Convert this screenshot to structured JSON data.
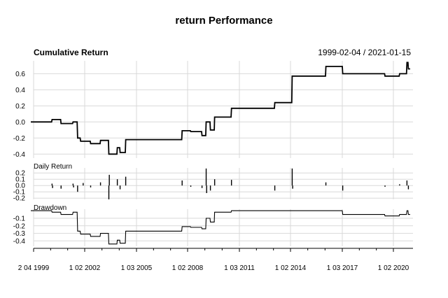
{
  "chart_data": {
    "type": "line",
    "title": "return Performance",
    "date_range": "1999-02-04 / 2021-01-15",
    "grid": true,
    "x_ticks": [
      "2 04 1999",
      "1 02 2002",
      "1 03 2005",
      "1 02 2008",
      "1 03 2011",
      "1 02 2014",
      "1 03 2017",
      "1 02 2020"
    ],
    "panels": [
      {
        "name": "Cumulative Return",
        "type": "line",
        "ylim": [
          -0.45,
          0.76
        ],
        "yticks": [
          "0.6",
          "0.4",
          "0.2",
          "0.0",
          "-0.2",
          "-0.4"
        ],
        "ytick_values": [
          0.6,
          0.4,
          0.2,
          0.0,
          -0.2,
          -0.4
        ],
        "points": [
          [
            "1999-02-04",
            0.0
          ],
          [
            "2000-04-01",
            0.0
          ],
          [
            "2000-04-10",
            0.03
          ],
          [
            "2000-10-01",
            0.03
          ],
          [
            "2000-10-10",
            -0.02
          ],
          [
            "2001-06-01",
            -0.02
          ],
          [
            "2001-06-10",
            0.0
          ],
          [
            "2001-09-01",
            0.0
          ],
          [
            "2001-09-10",
            -0.2
          ],
          [
            "2001-11-01",
            -0.2
          ],
          [
            "2001-11-10",
            -0.24
          ],
          [
            "2002-06-01",
            -0.24
          ],
          [
            "2002-06-10",
            -0.27
          ],
          [
            "2003-01-01",
            -0.27
          ],
          [
            "2003-01-10",
            -0.23
          ],
          [
            "2003-07-01",
            -0.23
          ],
          [
            "2003-07-10",
            -0.4
          ],
          [
            "2004-01-01",
            -0.4
          ],
          [
            "2004-01-10",
            -0.32
          ],
          [
            "2004-03-01",
            -0.32
          ],
          [
            "2004-03-10",
            -0.38
          ],
          [
            "2004-07-01",
            -0.38
          ],
          [
            "2004-07-10",
            -0.22
          ],
          [
            "2007-10-01",
            -0.22
          ],
          [
            "2007-10-10",
            -0.11
          ],
          [
            "2008-04-01",
            -0.11
          ],
          [
            "2008-04-10",
            -0.12
          ],
          [
            "2008-12-01",
            -0.12
          ],
          [
            "2008-12-10",
            -0.17
          ],
          [
            "2009-03-01",
            -0.17
          ],
          [
            "2009-03-10",
            0.0
          ],
          [
            "2009-06-01",
            0.0
          ],
          [
            "2009-06-10",
            -0.1
          ],
          [
            "2009-09-01",
            -0.1
          ],
          [
            "2009-09-10",
            0.06
          ],
          [
            "2010-09-01",
            0.06
          ],
          [
            "2010-09-10",
            0.17
          ],
          [
            "2013-03-01",
            0.17
          ],
          [
            "2013-03-10",
            0.24
          ],
          [
            "2014-03-01",
            0.24
          ],
          [
            "2014-03-10",
            0.57
          ],
          [
            "2016-03-01",
            0.57
          ],
          [
            "2016-03-10",
            0.69
          ],
          [
            "2017-03-01",
            0.69
          ],
          [
            "2017-03-10",
            0.6
          ],
          [
            "2019-08-01",
            0.6
          ],
          [
            "2019-08-10",
            0.57
          ],
          [
            "2020-06-01",
            0.57
          ],
          [
            "2020-06-10",
            0.6
          ],
          [
            "2020-11-01",
            0.6
          ],
          [
            "2020-11-10",
            0.74
          ],
          [
            "2020-12-01",
            0.74
          ],
          [
            "2020-12-10",
            0.66
          ],
          [
            "2021-01-15",
            0.66
          ]
        ]
      },
      {
        "name": "Daily Return",
        "type": "bar",
        "ylim": [
          -0.22,
          0.28
        ],
        "yticks": [
          "0.2",
          "0.1",
          "0.0",
          "-0.1",
          "-0.2"
        ],
        "ytick_values": [
          0.2,
          0.1,
          0.0,
          -0.1,
          -0.2
        ],
        "points": [
          [
            "2000-04-10",
            0.03
          ],
          [
            "2000-04-20",
            -0.04
          ],
          [
            "2000-10-10",
            -0.05
          ],
          [
            "2001-06-10",
            0.03
          ],
          [
            "2001-06-20",
            -0.03
          ],
          [
            "2001-09-10",
            -0.1
          ],
          [
            "2002-01-01",
            0.04
          ],
          [
            "2002-06-10",
            -0.03
          ],
          [
            "2003-01-10",
            0.05
          ],
          [
            "2003-07-10",
            -0.22
          ],
          [
            "2003-07-20",
            0.17
          ],
          [
            "2004-01-10",
            0.1
          ],
          [
            "2004-03-10",
            -0.06
          ],
          [
            "2004-07-10",
            0.14
          ],
          [
            "2007-10-10",
            0.08
          ],
          [
            "2008-04-10",
            -0.02
          ],
          [
            "2008-12-10",
            -0.04
          ],
          [
            "2009-03-10",
            0.27
          ],
          [
            "2009-03-20",
            -0.12
          ],
          [
            "2009-06-10",
            -0.08
          ],
          [
            "2009-09-10",
            0.1
          ],
          [
            "2010-09-10",
            0.09
          ],
          [
            "2013-03-10",
            -0.08
          ],
          [
            "2014-03-10",
            0.27
          ],
          [
            "2014-03-20",
            -0.05
          ],
          [
            "2016-03-10",
            0.05
          ],
          [
            "2017-03-10",
            -0.08
          ],
          [
            "2019-08-10",
            -0.02
          ],
          [
            "2020-06-10",
            0.02
          ],
          [
            "2020-11-10",
            0.08
          ],
          [
            "2020-12-10",
            -0.06
          ]
        ]
      },
      {
        "name": "Drawdown",
        "type": "line",
        "ylim": [
          -0.47,
          0.02
        ],
        "yticks": [
          "-0.1",
          "-0.2",
          "-0.3",
          "-0.4"
        ],
        "ytick_values": [
          -0.1,
          -0.2,
          -0.3,
          -0.4
        ],
        "points": [
          [
            "1999-02-04",
            0.0
          ],
          [
            "2000-04-01",
            0.0
          ],
          [
            "2000-04-10",
            -0.02
          ],
          [
            "2000-10-01",
            -0.02
          ],
          [
            "2000-10-10",
            -0.05
          ],
          [
            "2001-06-01",
            -0.05
          ],
          [
            "2001-06-10",
            -0.02
          ],
          [
            "2001-09-01",
            -0.02
          ],
          [
            "2001-09-10",
            -0.27
          ],
          [
            "2001-11-01",
            -0.27
          ],
          [
            "2001-11-10",
            -0.31
          ],
          [
            "2002-06-01",
            -0.31
          ],
          [
            "2002-06-10",
            -0.34
          ],
          [
            "2003-01-01",
            -0.34
          ],
          [
            "2003-01-10",
            -0.3
          ],
          [
            "2003-07-01",
            -0.3
          ],
          [
            "2003-07-10",
            -0.44
          ],
          [
            "2004-01-01",
            -0.44
          ],
          [
            "2004-01-10",
            -0.39
          ],
          [
            "2004-03-01",
            -0.39
          ],
          [
            "2004-03-10",
            -0.43
          ],
          [
            "2004-07-01",
            -0.43
          ],
          [
            "2004-07-10",
            -0.27
          ],
          [
            "2007-10-01",
            -0.27
          ],
          [
            "2007-10-10",
            -0.21
          ],
          [
            "2008-04-01",
            -0.21
          ],
          [
            "2008-04-10",
            -0.22
          ],
          [
            "2008-12-01",
            -0.22
          ],
          [
            "2008-12-10",
            -0.24
          ],
          [
            "2009-03-01",
            -0.24
          ],
          [
            "2009-03-10",
            -0.1
          ],
          [
            "2009-06-01",
            -0.1
          ],
          [
            "2009-06-10",
            -0.15
          ],
          [
            "2009-09-01",
            -0.15
          ],
          [
            "2009-09-10",
            -0.02
          ],
          [
            "2010-09-01",
            -0.02
          ],
          [
            "2010-09-10",
            0.0
          ],
          [
            "2013-03-01",
            0.0
          ],
          [
            "2013-03-10",
            0.0
          ],
          [
            "2014-03-01",
            0.0
          ],
          [
            "2014-03-10",
            0.0
          ],
          [
            "2016-03-01",
            0.0
          ],
          [
            "2016-03-10",
            0.0
          ],
          [
            "2017-03-01",
            0.0
          ],
          [
            "2017-03-10",
            -0.05
          ],
          [
            "2019-08-01",
            -0.05
          ],
          [
            "2019-08-10",
            -0.07
          ],
          [
            "2020-06-01",
            -0.07
          ],
          [
            "2020-06-10",
            -0.05
          ],
          [
            "2020-11-01",
            -0.05
          ],
          [
            "2020-11-10",
            0.0
          ],
          [
            "2020-12-01",
            0.0
          ],
          [
            "2020-12-10",
            -0.05
          ],
          [
            "2021-01-15",
            -0.05
          ]
        ]
      }
    ]
  }
}
